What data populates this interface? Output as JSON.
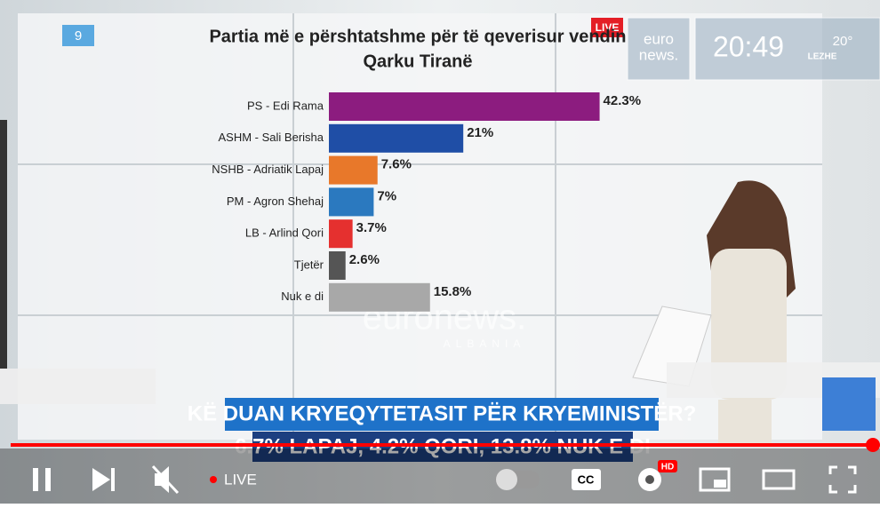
{
  "channel_number": "9",
  "live_badge": "LIVE",
  "logo": {
    "line1": "euro",
    "line2": "news."
  },
  "clock": {
    "time": "20:49",
    "temperature": "20°",
    "city": "LEZHE"
  },
  "watermark": {
    "brand": "euronews.",
    "region": "ALBANIA"
  },
  "caption": {
    "line1": "KË DUAN KRYEQYTETASIT PËR KRYEMINISTËR?",
    "line2": "6.7% LAPAJ, 4.2% QORI, 13.8% NUK E DI"
  },
  "player": {
    "live": "LIVE",
    "hd": "HD",
    "cc": "CC"
  },
  "chart_data": {
    "type": "bar",
    "orientation": "horizontal",
    "title": "Partia më e përshtatshme për të qeverisur vendin",
    "subtitle": "Qarku Tiranë",
    "categories": [
      "PS - Edi Rama",
      "ASHM - Sali Berisha",
      "NSHB - Adriatik Lapaj",
      "PM - Agron Shehaj",
      "LB - Arlind Qori",
      "Tjetër",
      "Nuk e di"
    ],
    "values": [
      42.3,
      21,
      7.6,
      7,
      3.7,
      2.6,
      15.8
    ],
    "value_labels": [
      "42.3%",
      "21%",
      "7.6%",
      "7%",
      "3.7%",
      "2.6%",
      "15.8%"
    ],
    "colors": [
      "#8c1c7f",
      "#1f4ea6",
      "#e8782a",
      "#2b79bf",
      "#e5302f",
      "#555555",
      "#a8a8a8"
    ],
    "xlim": [
      0,
      50
    ]
  }
}
